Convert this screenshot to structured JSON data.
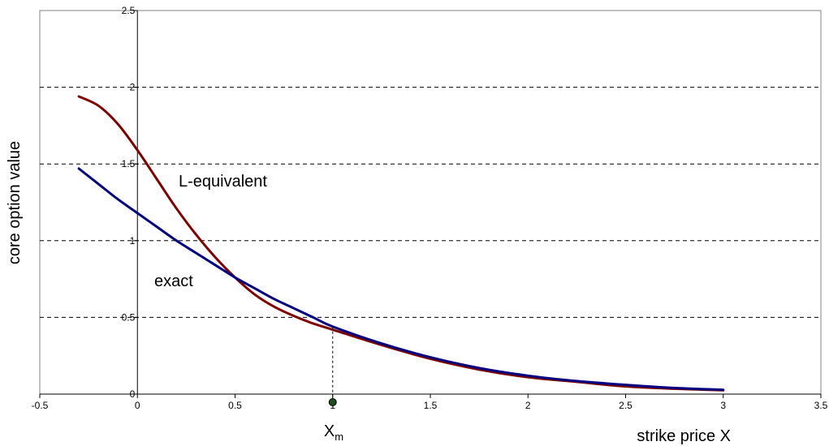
{
  "chart_data": {
    "type": "line",
    "title": "",
    "xlabel": "strike price X",
    "ylabel": "core option value",
    "xlim": [
      -0.5,
      3.5
    ],
    "ylim": [
      0,
      2.5
    ],
    "x_ticks": [
      -0.5,
      0,
      0.5,
      1,
      1.5,
      2,
      2.5,
      3,
      3.5
    ],
    "y_ticks": [
      0,
      0.5,
      1,
      1.5,
      2,
      2.5
    ],
    "x_tick_labels": [
      "-0.5",
      "0",
      "0.5",
      "1",
      "1.5",
      "2",
      "2.5",
      "3",
      "3.5"
    ],
    "y_tick_labels": [
      "0",
      "0.5",
      "1",
      "1.5",
      "2",
      "2.5"
    ],
    "grid": "horizontal dashed",
    "series": [
      {
        "name": "L-equivalent",
        "color": "#800000",
        "x": [
          -0.3,
          -0.2,
          -0.1,
          0,
          0.1,
          0.2,
          0.3,
          0.4,
          0.5,
          0.6,
          0.7,
          0.8,
          0.9,
          1.0,
          1.25,
          1.5,
          1.75,
          2.0,
          2.25,
          2.5,
          2.75,
          3.0
        ],
        "y": [
          1.94,
          1.88,
          1.76,
          1.59,
          1.4,
          1.21,
          1.04,
          0.89,
          0.76,
          0.65,
          0.57,
          0.51,
          0.46,
          0.42,
          0.32,
          0.23,
          0.16,
          0.11,
          0.08,
          0.05,
          0.035,
          0.025
        ]
      },
      {
        "name": "exact",
        "color": "#000080",
        "x": [
          -0.3,
          -0.2,
          -0.1,
          0,
          0.1,
          0.2,
          0.3,
          0.4,
          0.5,
          0.6,
          0.7,
          0.8,
          0.9,
          1.0,
          1.25,
          1.5,
          1.75,
          2.0,
          2.25,
          2.5,
          2.75,
          3.0
        ],
        "y": [
          1.47,
          1.37,
          1.27,
          1.18,
          1.09,
          1.0,
          0.92,
          0.84,
          0.76,
          0.69,
          0.62,
          0.56,
          0.5,
          0.44,
          0.33,
          0.24,
          0.17,
          0.12,
          0.085,
          0.06,
          0.04,
          0.028
        ]
      }
    ],
    "marker": {
      "label_main": "X",
      "label_sub": "m",
      "x": 1.0,
      "y_curve": 0.44,
      "color": "#1f4d1f"
    }
  }
}
